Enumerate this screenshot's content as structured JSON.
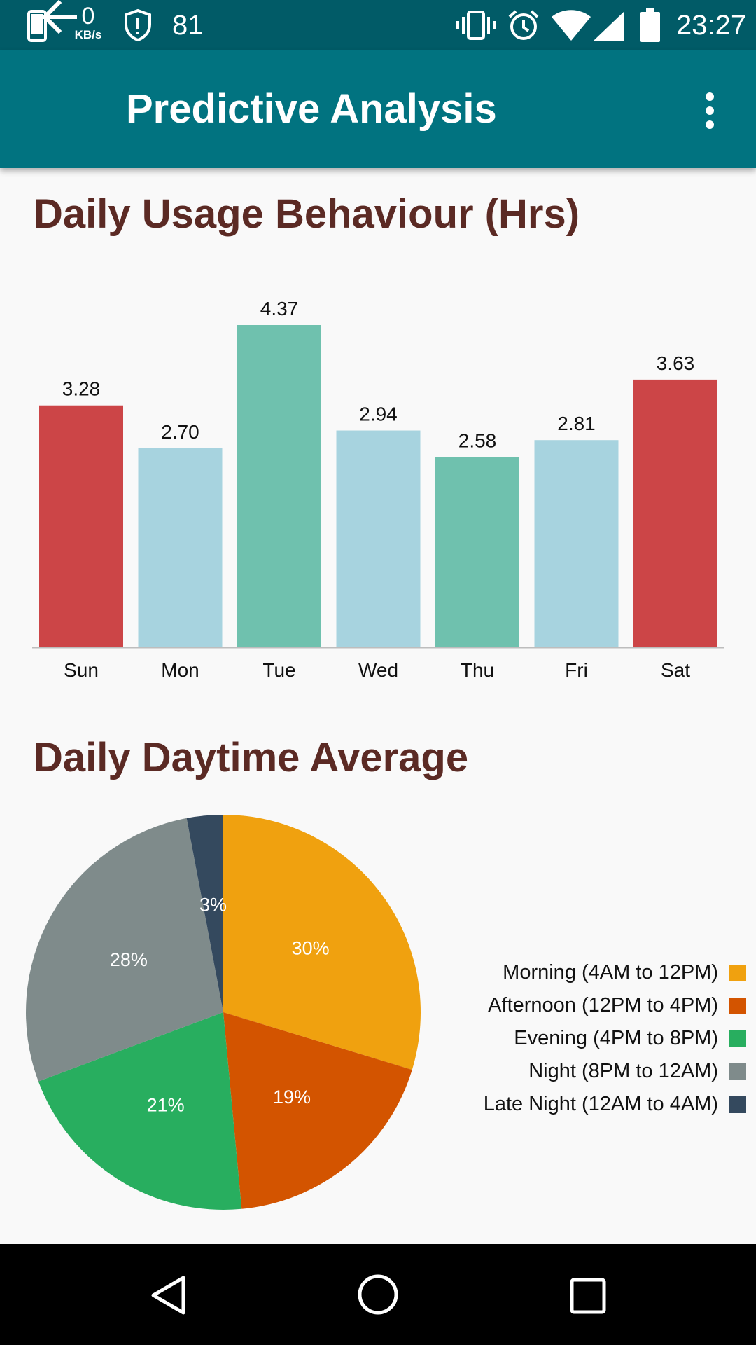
{
  "status_bar": {
    "network_speed_value": "0",
    "network_speed_unit": "KB/s",
    "notification_count": "81",
    "time": "23:27",
    "icons": [
      "phone-icon",
      "shield-icon",
      "vibrate-icon",
      "alarm-icon",
      "wifi-icon",
      "signal-icon",
      "battery-icon"
    ]
  },
  "app_bar": {
    "title": "Predictive Analysis",
    "back_icon": "arrow-left-icon",
    "menu_icon": "more-vert-icon"
  },
  "colors": {
    "status_bar": "#015b67",
    "app_bar": "#017380",
    "title_text": "#5b2a24",
    "bar_red": "#cc4547",
    "bar_blue": "#a7d3df",
    "bar_green": "#6fc1ae"
  },
  "bar_section": {
    "title": "Daily Usage Behaviour (Hrs)"
  },
  "pie_section": {
    "title": "Daily Daytime Average"
  },
  "chart_data": [
    {
      "type": "bar",
      "title": "Daily Usage Behaviour (Hrs)",
      "categories": [
        "Sun",
        "Mon",
        "Tue",
        "Wed",
        "Thu",
        "Fri",
        "Sat"
      ],
      "values": [
        3.28,
        2.7,
        4.37,
        2.94,
        2.58,
        2.81,
        3.63
      ],
      "value_labels": [
        "3.28",
        "2.70",
        "4.37",
        "2.94",
        "2.58",
        "2.81",
        "3.63"
      ],
      "colors": [
        "#cc4547",
        "#a7d3df",
        "#6fc1ae",
        "#a7d3df",
        "#6fc1ae",
        "#a7d3df",
        "#cc4547"
      ],
      "ylim": [
        0,
        4.37
      ],
      "grid": false,
      "legend": "none"
    },
    {
      "type": "pie",
      "title": "Daily Daytime Average",
      "labels": [
        "Morning (4AM to 12PM)",
        "Afternoon (12PM to 4PM)",
        "Evening (4PM to 8PM)",
        "Night (8PM to 12AM)",
        "Late Night (12AM to 4AM)"
      ],
      "values": [
        30,
        19,
        21,
        28,
        3
      ],
      "value_labels": [
        "30%",
        "19%",
        "21%",
        "28%",
        "3%"
      ],
      "colors": [
        "#f0a10f",
        "#d35400",
        "#28ae5f",
        "#7f8b8b",
        "#34495e"
      ],
      "legend": "right"
    }
  ],
  "nav_bar": {
    "icons": [
      "back-triangle-icon",
      "home-circle-icon",
      "recents-square-icon"
    ]
  }
}
